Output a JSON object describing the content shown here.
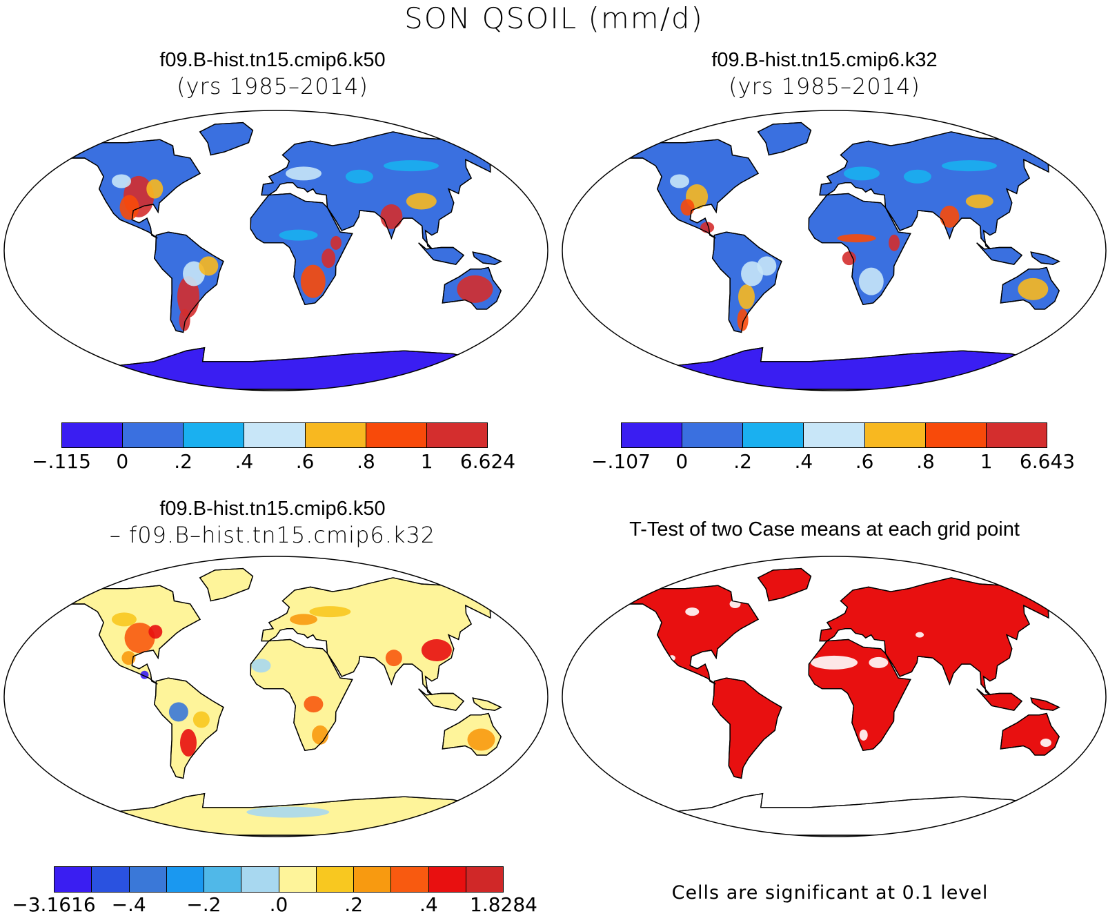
{
  "title": "SON QSOIL (mm/d)",
  "panels": [
    {
      "id": "k50",
      "title_line1": "f09.B-hist.tn15.cmip6.k50",
      "title_line2": "(yrs 1985–2014)"
    },
    {
      "id": "k32",
      "title_line1": "f09.B-hist.tn15.cmip6.k32",
      "title_line2": "(yrs 1985–2014)"
    },
    {
      "id": "diff",
      "title_line1": "f09.B-hist.tn15.cmip6.k50",
      "title_line2": "– f09.B–hist.tn15.cmip6.k32"
    },
    {
      "id": "ttest",
      "title_line1": "T-Test of two Case means at each grid point",
      "title_line2": ""
    }
  ],
  "colorbars": [
    {
      "colors": [
        "#3a1ef2",
        "#3a70e0",
        "#1ab0f0",
        "#c8e6f8",
        "#f8b820",
        "#f84a0a",
        "#d42e2e"
      ],
      "labels": [
        "−.115",
        "0",
        ".2",
        ".4",
        ".6",
        ".8",
        "1",
        "6.624"
      ]
    },
    {
      "colors": [
        "#3a1ef2",
        "#3a70e0",
        "#1ab0f0",
        "#c8e6f8",
        "#f8b820",
        "#f84a0a",
        "#d42e2e"
      ],
      "labels": [
        "−.107",
        "0",
        ".2",
        ".4",
        ".6",
        ".8",
        "1",
        "6.643"
      ]
    },
    {
      "colors": [
        "#3a1ef2",
        "#2a52e0",
        "#3a78d8",
        "#1a98f0",
        "#50b8e8",
        "#a8d8f0",
        "#fef49a",
        "#f8c820",
        "#f89a10",
        "#f85a10",
        "#e81010",
        "#d02828"
      ],
      "labels": [
        "−3.1616",
        "−.4",
        "−.2",
        ".0",
        ".2",
        ".4",
        "1.8284"
      ]
    }
  ],
  "ttest_note": "Cells are significant at 0.1 level",
  "map_colors": {
    "k50_land": "#3a70e0",
    "k32_land": "#3a70e0",
    "diff_land": "#fef49a",
    "ttest_land": "#e81010",
    "antarctica": "#3a1ef2"
  }
}
